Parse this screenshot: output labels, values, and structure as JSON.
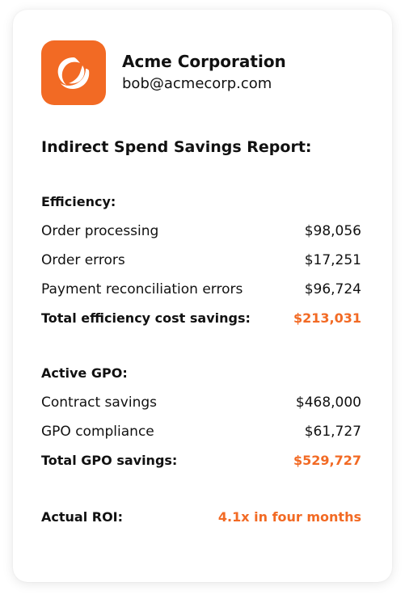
{
  "colors": {
    "accent": "#f26a24"
  },
  "company": {
    "logo_icon": "acme-swirl-logo-icon",
    "name": "Acme Corporation",
    "email": "bob@acmecorp.com"
  },
  "report": {
    "title": "Indirect Spend Savings Report:"
  },
  "efficiency": {
    "title": "Efficiency:",
    "items": [
      {
        "label": "Order processing",
        "value": "$98,056"
      },
      {
        "label": "Order errors",
        "value": "$17,251"
      },
      {
        "label": "Payment reconciliation errors",
        "value": "$96,724"
      }
    ],
    "total_label": "Total efficiency cost savings:",
    "total_value": "$213,031"
  },
  "gpo": {
    "title": "Active GPO:",
    "items": [
      {
        "label": "Contract savings",
        "value": "$468,000"
      },
      {
        "label": "GPO compliance",
        "value": "$61,727"
      }
    ],
    "total_label": "Total GPO savings:",
    "total_value": "$529,727"
  },
  "roi": {
    "label": "Actual ROI:",
    "value": "4.1x in four months"
  }
}
